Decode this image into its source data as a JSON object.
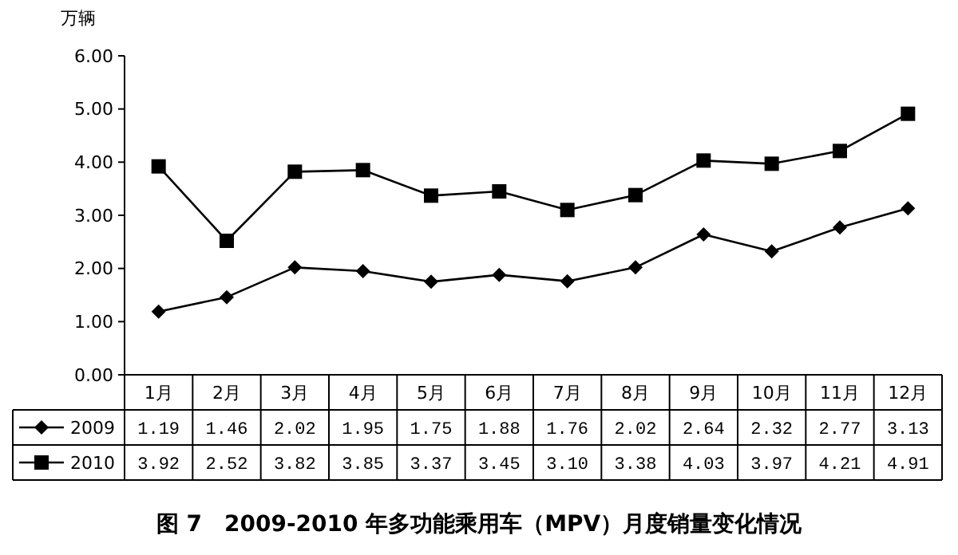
{
  "chart_data": {
    "type": "line",
    "title": "图 7　2009-2010 年多功能乘用车（MPV）月度销量变化情况",
    "ylabel": "万辆",
    "categories": [
      "1月",
      "2月",
      "3月",
      "4月",
      "5月",
      "6月",
      "7月",
      "8月",
      "9月",
      "10月",
      "11月",
      "12月"
    ],
    "series": [
      {
        "name": "2009",
        "color": "#000000",
        "marker": "diamond",
        "values": [
          1.19,
          1.46,
          2.02,
          1.95,
          1.75,
          1.88,
          1.76,
          2.02,
          2.64,
          2.32,
          2.77,
          3.13
        ],
        "value_labels": [
          "1.19",
          "1.46",
          "2.02",
          "1.95",
          "1.75",
          "1.88",
          "1.76",
          "2.02",
          "2.64",
          "2.32",
          "2.77",
          "3.13"
        ]
      },
      {
        "name": "2010",
        "color": "#000000",
        "marker": "square",
        "values": [
          3.92,
          2.52,
          3.82,
          3.85,
          3.37,
          3.45,
          3.1,
          3.38,
          4.03,
          3.97,
          4.21,
          4.91
        ],
        "value_labels": [
          "3.92",
          "2.52",
          "3.82",
          "3.85",
          "3.37",
          "3.45",
          "3.10",
          "3.38",
          "4.03",
          "3.97",
          "4.21",
          "4.91"
        ]
      }
    ],
    "ylim": [
      0,
      6
    ],
    "yticks": [
      {
        "value": 0,
        "label": "0.00"
      },
      {
        "value": 1,
        "label": "1.00"
      },
      {
        "value": 2,
        "label": "2.00"
      },
      {
        "value": 3,
        "label": "3.00"
      },
      {
        "value": 4,
        "label": "4.00"
      },
      {
        "value": 5,
        "label": "5.00"
      },
      {
        "value": 6,
        "label": "6.00"
      }
    ],
    "grid": false,
    "legend": "bottom",
    "line_style": "solid"
  }
}
